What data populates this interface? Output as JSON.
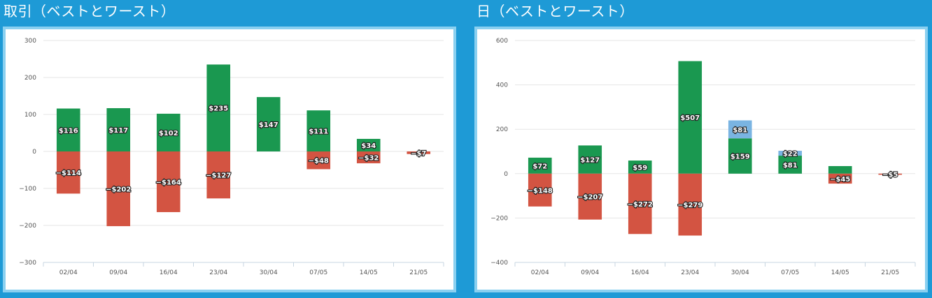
{
  "panels": [
    {
      "title": "取引（ベストとワースト）",
      "chart_data": {
        "type": "bar",
        "stacked": true,
        "categories": [
          "02/04",
          "09/04",
          "16/04",
          "23/04",
          "30/04",
          "07/05",
          "14/05",
          "21/05"
        ],
        "series": [
          {
            "color": "#1a9850",
            "values": [
              116,
              117,
              102,
              235,
              147,
              111,
              34,
              0
            ],
            "labels": [
              "$116",
              "$117",
              "$102",
              "$235",
              "$147",
              "$111",
              "$34",
              ""
            ]
          },
          {
            "color": "#d35442",
            "values": [
              -114,
              -202,
              -164,
              -127,
              0,
              -48,
              -32,
              -7
            ],
            "labels": [
              "−$114",
              "−$202",
              "−$164",
              "−$127",
              "",
              "−$48",
              "−$32",
              "−$7"
            ]
          }
        ],
        "yticks": [
          "300",
          "200",
          "100",
          "0",
          "−100",
          "−200",
          "−300"
        ],
        "ylim": [
          -300,
          300
        ],
        "grid": true,
        "legend": "none"
      }
    },
    {
      "title": "日（ベストとワースト）",
      "chart_data": {
        "type": "bar",
        "stacked": true,
        "categories": [
          "02/04",
          "09/04",
          "16/04",
          "23/04",
          "30/04",
          "07/05",
          "14/05",
          "21/05"
        ],
        "series": [
          {
            "color": "#1a9850",
            "values": [
              72,
              127,
              59,
              507,
              159,
              81,
              34,
              0
            ],
            "labels": [
              "$72",
              "$127",
              "$59",
              "$507",
              "$159",
              "$81",
              "",
              ""
            ]
          },
          {
            "color": "#7ab4e2",
            "values": [
              0,
              0,
              0,
              0,
              81,
              22,
              0,
              0
            ],
            "labels": [
              "",
              "",
              "",
              "",
              "$81",
              "$22",
              "",
              ""
            ]
          },
          {
            "color": "#d35442",
            "values": [
              -148,
              -207,
              -272,
              -279,
              0,
              0,
              -45,
              -5
            ],
            "labels": [
              "−$148",
              "−$207",
              "−$272",
              "−$279",
              "",
              "",
              "−$45",
              "−$5"
            ]
          }
        ],
        "yticks": [
          "600",
          "400",
          "200",
          "0",
          "−200",
          "−400"
        ],
        "ylim": [
          -400,
          600
        ],
        "grid": true,
        "legend": "none"
      }
    }
  ]
}
